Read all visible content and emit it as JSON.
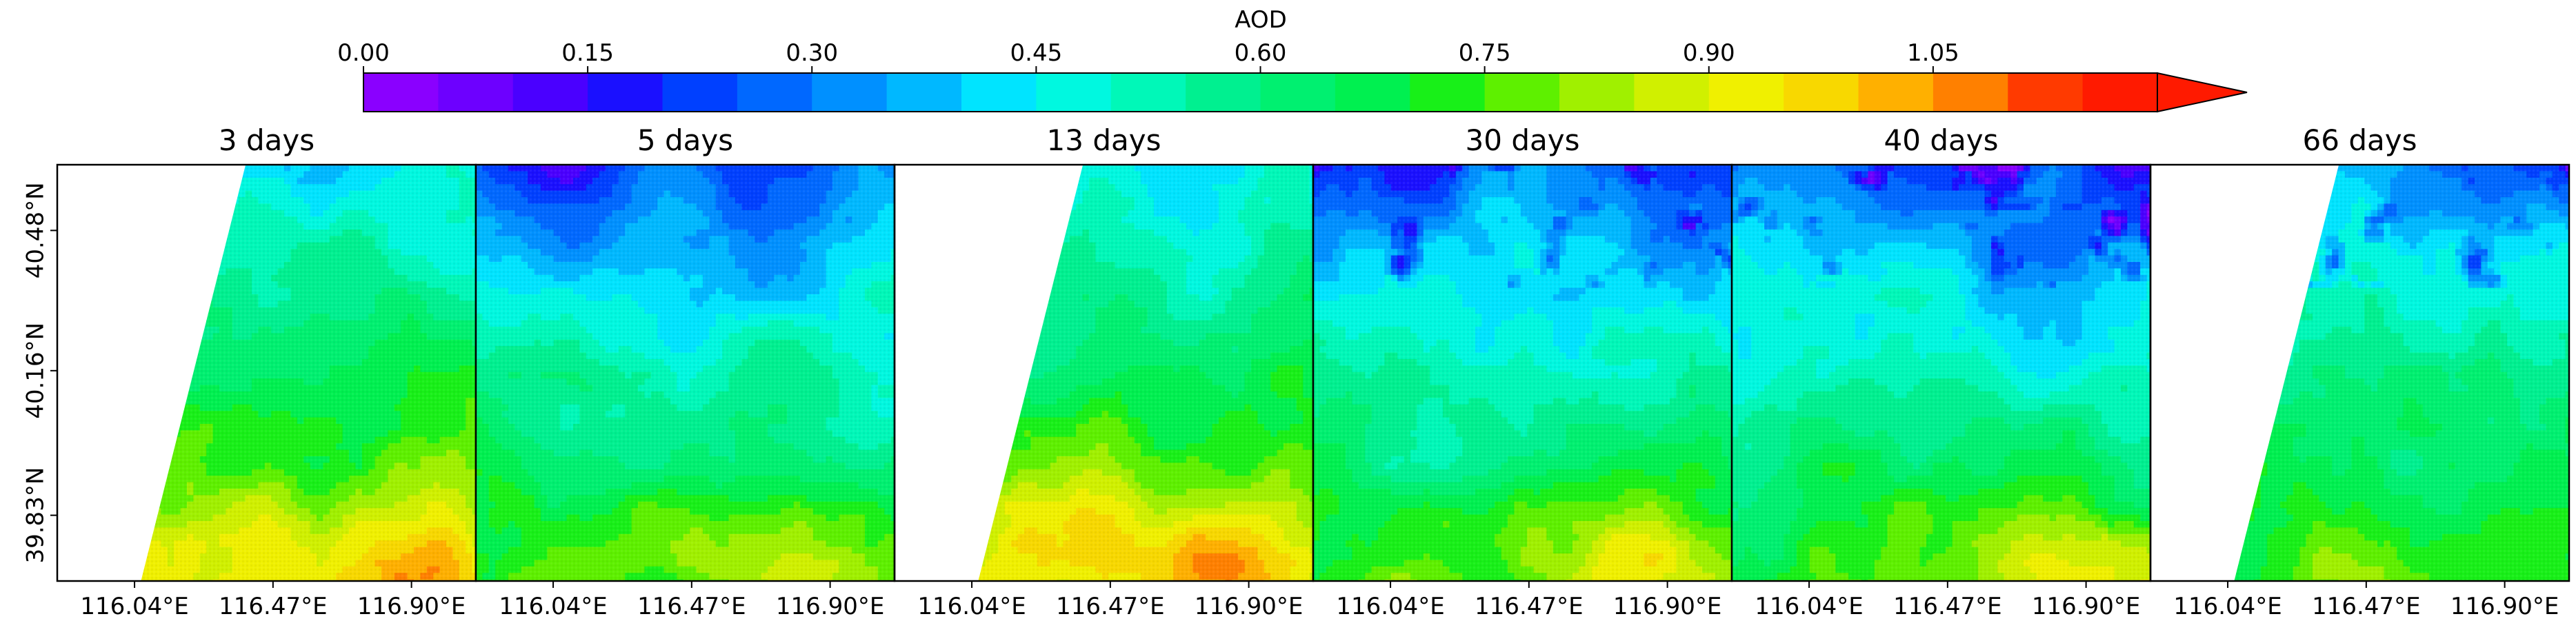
{
  "chart_data": {
    "type": "heatmap",
    "title": "AOD",
    "colorbar": {
      "label": "AOD",
      "vmin": 0.0,
      "vmax": 1.2,
      "bin_width": 0.05,
      "extend": "max",
      "orientation": "horizontal",
      "placement": "top",
      "ticks": [
        0.0,
        0.15,
        0.3,
        0.45,
        0.6,
        0.75,
        0.9,
        1.05
      ],
      "tick_labels": [
        "0.00",
        "0.15",
        "0.30",
        "0.45",
        "0.60",
        "0.75",
        "0.90",
        "1.05"
      ],
      "colors": [
        "#8a00ff",
        "#6d00ff",
        "#4a00ff",
        "#1a10ff",
        "#0040ff",
        "#0068ff",
        "#0090ff",
        "#00b8ff",
        "#00e4ff",
        "#00f8e0",
        "#00f8b8",
        "#00f090",
        "#00f070",
        "#00f050",
        "#18f018",
        "#5ef000",
        "#a0f000",
        "#d0f000",
        "#f0f000",
        "#f8d800",
        "#ffb000",
        "#ff8000",
        "#ff3a00",
        "#ff1a00"
      ]
    },
    "panels": [
      {
        "title": "3 days",
        "base": 0.66,
        "gradient": 0.36,
        "north_low": 0.04,
        "swath_edge": true,
        "hotspot": 0.22,
        "blue_patches": false
      },
      {
        "title": "5 days",
        "base": 0.55,
        "gradient": 0.42,
        "north_low": 0.12,
        "swath_edge": false,
        "hotspot": 0.22,
        "blue_patches": false
      },
      {
        "title": "13 days",
        "base": 0.66,
        "gradient": 0.38,
        "north_low": 0.06,
        "swath_edge": true,
        "hotspot": 0.26,
        "blue_patches": false
      },
      {
        "title": "30 days",
        "base": 0.55,
        "gradient": 0.4,
        "north_low": 0.18,
        "swath_edge": false,
        "hotspot": 0.18,
        "blue_patches": true
      },
      {
        "title": "40 days",
        "base": 0.55,
        "gradient": 0.4,
        "north_low": 0.16,
        "swath_edge": false,
        "hotspot": 0.18,
        "blue_patches": true
      },
      {
        "title": "66 days",
        "base": 0.62,
        "gradient": 0.3,
        "north_low": 0.15,
        "swath_edge": true,
        "hotspot": 0.0,
        "blue_patches": true
      }
    ],
    "x_ticks": [
      "116.04°E",
      "116.47°E",
      "116.90°E"
    ],
    "x_tick_values": [
      116.04,
      116.47,
      116.9
    ],
    "y_ticks": [
      "40.48°N",
      "40.16°N",
      "39.83°N"
    ],
    "y_tick_values": [
      40.48,
      40.16,
      39.83
    ],
    "xlim": [
      115.8,
      117.1
    ],
    "ylim": [
      39.68,
      40.63
    ],
    "xlabel": "",
    "ylabel": ""
  }
}
